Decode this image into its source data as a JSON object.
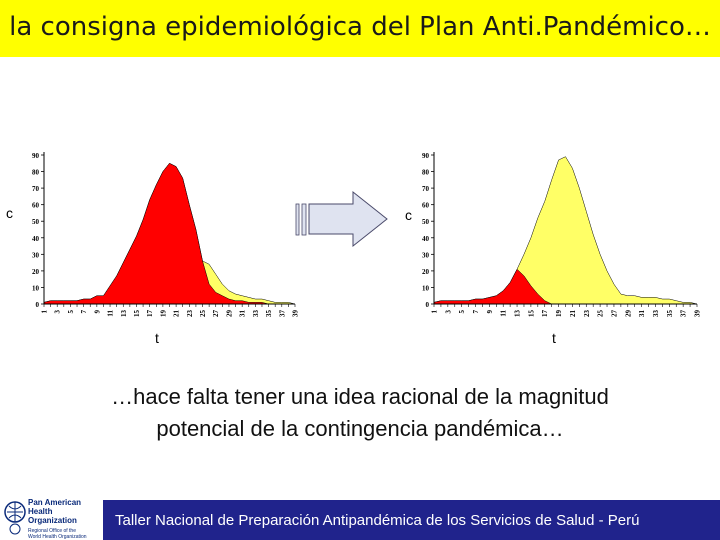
{
  "title": "la consigna epidemiológica del Plan Anti.Pandémico…",
  "caption_line1": "…hace falta tener una idea racional de la magnitud",
  "caption_line2": "potencial de la contingencia pandémica…",
  "footer": "Taller Nacional de Preparación Antipandémica de los Servicios de Salud - Perú",
  "logo": {
    "line1": "Pan American",
    "line2": "Health",
    "line3": "Organization",
    "sub1": "Regional Office of the",
    "sub2": "World Health Organization"
  },
  "colors": {
    "title_bg": "#ffff00",
    "footer_bg": "#20238c",
    "red_area": "#ff0000",
    "yellow_area": "#ffff66"
  },
  "chart_data": [
    {
      "type": "area",
      "y_axis_letter": "c",
      "x_axis_letter": "t",
      "ylim": [
        0,
        90
      ],
      "y_ticks": [
        0,
        10,
        20,
        30,
        40,
        50,
        60,
        70,
        80,
        90
      ],
      "x_tick_labels": [
        "1",
        "3",
        "5",
        "7",
        "9",
        "11",
        "13",
        "15",
        "17",
        "19",
        "21",
        "23",
        "25",
        "27",
        "29",
        "31",
        "33",
        "35",
        "37",
        "39"
      ],
      "x": [
        1,
        2,
        3,
        4,
        5,
        6,
        7,
        8,
        9,
        10,
        11,
        12,
        13,
        14,
        15,
        16,
        17,
        18,
        19,
        20,
        21,
        22,
        23,
        24,
        25,
        26,
        27,
        28,
        29,
        30,
        31,
        32,
        33,
        34,
        35,
        36,
        37,
        38,
        39
      ],
      "series": [
        {
          "values": [
            1,
            2,
            2,
            2,
            2,
            2,
            3,
            3,
            5,
            5,
            11,
            17,
            25,
            33,
            41,
            51,
            63,
            72,
            80,
            85,
            83,
            76,
            60,
            45,
            26,
            12,
            7,
            5,
            3,
            2,
            2,
            1,
            1,
            1,
            0,
            0,
            0,
            0,
            0
          ]
        },
        {
          "values": [
            1,
            2,
            2,
            2,
            2,
            2,
            3,
            3,
            5,
            5,
            11,
            17,
            25,
            33,
            41,
            51,
            63,
            72,
            80,
            85,
            83,
            76,
            60,
            45,
            26,
            24,
            18,
            12,
            8,
            6,
            5,
            4,
            3,
            3,
            2,
            1,
            1,
            1,
            0
          ]
        }
      ]
    },
    {
      "type": "area",
      "y_axis_letter": "c",
      "x_axis_letter": "t",
      "ylim": [
        0,
        90
      ],
      "y_ticks": [
        0,
        10,
        20,
        30,
        40,
        50,
        60,
        70,
        80,
        90
      ],
      "x_tick_labels": [
        "1",
        "3",
        "5",
        "7",
        "9",
        "11",
        "13",
        "15",
        "17",
        "19",
        "21",
        "23",
        "25",
        "27",
        "29",
        "31",
        "33",
        "35",
        "37",
        "39"
      ],
      "x": [
        1,
        2,
        3,
        4,
        5,
        6,
        7,
        8,
        9,
        10,
        11,
        12,
        13,
        14,
        15,
        16,
        17,
        18,
        19,
        20,
        21,
        22,
        23,
        24,
        25,
        26,
        27,
        28,
        29,
        30,
        31,
        32,
        33,
        34,
        35,
        36,
        37,
        38,
        39
      ],
      "series": [
        {
          "values": [
            1,
            2,
            2,
            2,
            2,
            2,
            3,
            3,
            4,
            5,
            8,
            13,
            21,
            17,
            11,
            6,
            2,
            0,
            0,
            0,
            0,
            0,
            0,
            0,
            0,
            0,
            0,
            0,
            0,
            0,
            0,
            0,
            0,
            0,
            0,
            0,
            0,
            0,
            0
          ]
        },
        {
          "values": [
            1,
            2,
            2,
            2,
            2,
            2,
            3,
            3,
            4,
            5,
            8,
            13,
            21,
            30,
            40,
            52,
            62,
            75,
            87,
            89,
            82,
            70,
            56,
            42,
            30,
            20,
            12,
            6,
            5,
            5,
            4,
            4,
            4,
            3,
            3,
            2,
            1,
            1,
            0
          ]
        }
      ]
    }
  ]
}
